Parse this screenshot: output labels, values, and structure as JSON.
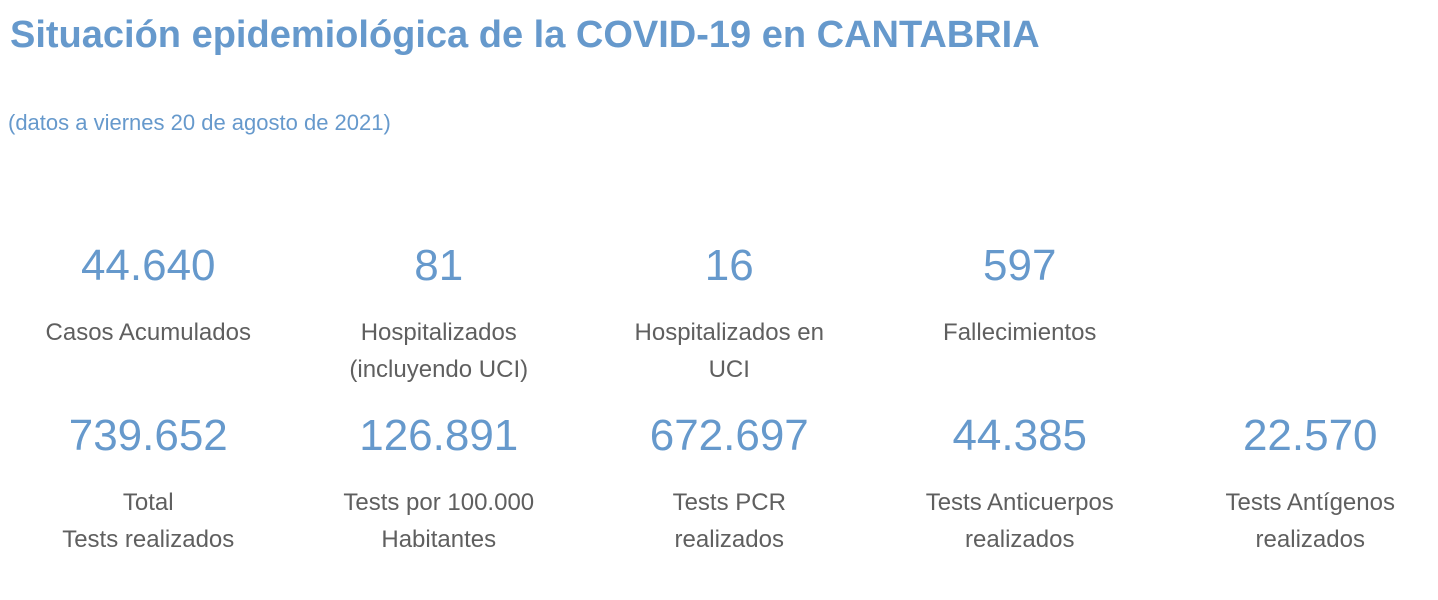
{
  "header": {
    "title": "Situación epidemiológica de la COVID-19 en CANTABRIA",
    "subtitle": "(datos a viernes 20 de agosto de 2021)"
  },
  "colors": {
    "accent_blue": "#6699cc",
    "label_gray": "#5f5f5f",
    "background": "#ffffff"
  },
  "stats": {
    "row1": [
      {
        "value": "44.640",
        "label_lines": [
          "Casos Acumulados"
        ]
      },
      {
        "value": "81",
        "label_lines": [
          "Hospitalizados",
          "(incluyendo UCI)"
        ]
      },
      {
        "value": "16",
        "label_lines": [
          "Hospitalizados en",
          "UCI"
        ]
      },
      {
        "value": "597",
        "label_lines": [
          "Fallecimientos"
        ]
      }
    ],
    "row2": [
      {
        "value": "739.652",
        "label_lines": [
          "Total",
          "Tests realizados"
        ]
      },
      {
        "value": "126.891",
        "label_lines": [
          "Tests por 100.000",
          "Habitantes"
        ]
      },
      {
        "value": "672.697",
        "label_lines": [
          "Tests PCR",
          "realizados"
        ]
      },
      {
        "value": "44.385",
        "label_lines": [
          "Tests Anticuerpos",
          "realizados"
        ]
      },
      {
        "value": "22.570",
        "label_lines": [
          "Tests Antígenos",
          "realizados"
        ]
      }
    ]
  },
  "chart_data": {
    "type": "table",
    "title": "Situación epidemiológica de la COVID-19 en CANTABRIA",
    "subtitle": "(datos a viernes 20 de agosto de 2021)",
    "columns": [
      "metric",
      "value"
    ],
    "rows": [
      [
        "Casos Acumulados",
        44640
      ],
      [
        "Hospitalizados (incluyendo UCI)",
        81
      ],
      [
        "Hospitalizados en UCI",
        16
      ],
      [
        "Fallecimientos",
        597
      ],
      [
        "Total Tests realizados",
        739652
      ],
      [
        "Tests por 100.000 Habitantes",
        126891
      ],
      [
        "Tests PCR realizados",
        672697
      ],
      [
        "Tests Anticuerpos realizados",
        44385
      ],
      [
        "Tests Antígenos realizados",
        22570
      ]
    ],
    "layout_hints": {
      "row1_columns": 4,
      "row2_columns": 5,
      "value_color": "#6699cc",
      "label_color": "#5f5f5f"
    }
  }
}
